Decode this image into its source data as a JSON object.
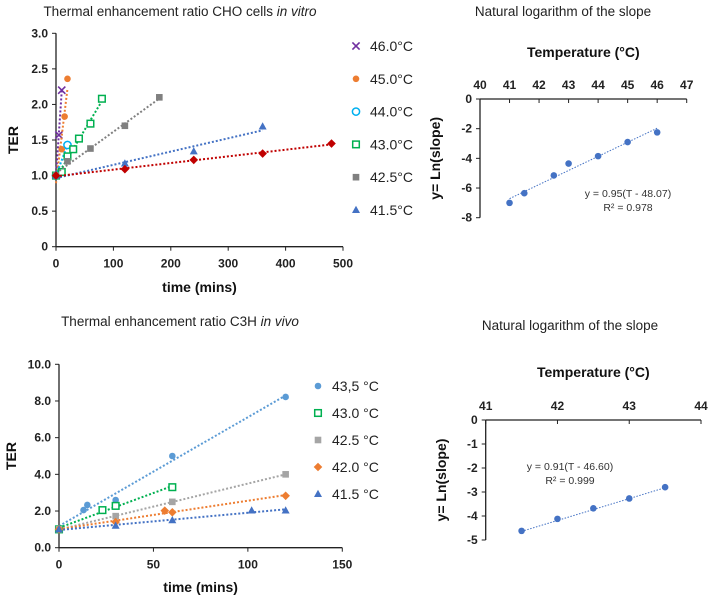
{
  "chart_data": [
    {
      "id": "c1",
      "type": "scatter",
      "title": "Thermal enhancement ratio CHO cells",
      "title_italic": "in vitro",
      "xlabel": "time (mins)",
      "ylabel": "TER",
      "xlim": [
        0,
        500
      ],
      "ylim": [
        0,
        3.0
      ],
      "xticks": [
        "0",
        "100",
        "200",
        "300",
        "400",
        "500"
      ],
      "yticks": [
        "0",
        "0.5",
        "1.0",
        "1.5",
        "2.0",
        "2.5",
        "3.0"
      ],
      "legend_position": "right",
      "series": [
        {
          "name": "46.0°C",
          "color": "#7030a0",
          "marker": "x",
          "x": [
            0,
            5,
            10
          ],
          "y": [
            1.0,
            1.57,
            2.2
          ]
        },
        {
          "name": "45.0°C",
          "color": "#ed7d31",
          "marker": "circle",
          "x": [
            0,
            10,
            15,
            20
          ],
          "y": [
            1.0,
            1.37,
            1.83,
            2.36
          ]
        },
        {
          "name": "44.0°C",
          "color": "#00b0f0",
          "marker": "open-circle",
          "x": [
            0,
            20
          ],
          "y": [
            1.0,
            1.43
          ]
        },
        {
          "name": "43.0°C",
          "color": "#00b050",
          "marker": "open-square",
          "x": [
            0,
            10,
            20,
            30,
            40,
            60,
            80
          ],
          "y": [
            1.0,
            1.05,
            1.27,
            1.37,
            1.52,
            1.73,
            2.08
          ]
        },
        {
          "name": "42.5°C",
          "color": "#808080",
          "marker": "square",
          "x": [
            0,
            20,
            60,
            120,
            180
          ],
          "y": [
            1.0,
            1.2,
            1.38,
            1.7,
            2.1
          ]
        },
        {
          "name": "41.5°C",
          "color": "#4472c4",
          "marker": "triangle",
          "x": [
            0,
            120,
            240,
            360
          ],
          "y": [
            1.0,
            1.17,
            1.34,
            1.69
          ]
        },
        {
          "name": "",
          "color": "#c00000",
          "marker": "diamond",
          "x": [
            0,
            120,
            240,
            360,
            480
          ],
          "y": [
            1.0,
            1.09,
            1.22,
            1.31,
            1.45
          ]
        }
      ]
    },
    {
      "id": "c2",
      "type": "scatter",
      "title": "Natural logarithm of the slope",
      "xlabel": "Temperature (°C)",
      "ylabel": "y= Ln(slope)",
      "xlim": [
        40,
        47
      ],
      "ylim": [
        -8,
        0
      ],
      "xticks": [
        "40",
        "41",
        "42",
        "43",
        "44",
        "45",
        "46",
        "47"
      ],
      "yticks": [
        "-8",
        "-6",
        "-4",
        "-2",
        "0"
      ],
      "equation": "y = 0.95(T - 48.07)",
      "r2": "R² = 0.978",
      "fit": {
        "slope": 0.95,
        "x0": 48.07
      },
      "series": [
        {
          "name": "Ln(slope)",
          "color": "#4472c4",
          "marker": "circle",
          "x": [
            41,
            41.5,
            42.5,
            43,
            44,
            45,
            46
          ],
          "y": [
            -7.0,
            -6.35,
            -5.15,
            -4.35,
            -3.85,
            -2.9,
            -2.25
          ]
        }
      ]
    },
    {
      "id": "c3",
      "type": "scatter",
      "title": "Thermal enhancement ratio C3H",
      "title_italic": "in vivo",
      "xlabel": "time (mins)",
      "ylabel": "TER",
      "xlim": [
        0,
        150
      ],
      "ylim": [
        0,
        10
      ],
      "xticks": [
        "0",
        "50",
        "100",
        "150"
      ],
      "yticks": [
        "0.0",
        "2.0",
        "4.0",
        "6.0",
        "8.0",
        "10.0"
      ],
      "legend_position": "right",
      "series": [
        {
          "name": "43,5 °C",
          "color": "#5b9bd5",
          "marker": "circle",
          "x": [
            0,
            13,
            15,
            30,
            60,
            120
          ],
          "y": [
            1.0,
            2.05,
            2.33,
            2.6,
            5.0,
            8.22
          ]
        },
        {
          "name": "43.0 °C",
          "color": "#00b050",
          "marker": "open-square",
          "x": [
            0,
            23,
            30,
            60
          ],
          "y": [
            1.0,
            2.05,
            2.28,
            3.3
          ]
        },
        {
          "name": "42.5 °C",
          "color": "#a5a5a5",
          "marker": "square",
          "x": [
            0,
            30,
            60,
            120
          ],
          "y": [
            1.0,
            1.72,
            2.5,
            4.0
          ]
        },
        {
          "name": "42.0 °C",
          "color": "#ed7d31",
          "marker": "diamond",
          "x": [
            0,
            30,
            56,
            60,
            120
          ],
          "y": [
            1.0,
            1.4,
            2.02,
            1.93,
            2.83
          ]
        },
        {
          "name": "41.5 °C",
          "color": "#4472c4",
          "marker": "triangle",
          "x": [
            0,
            30,
            60,
            102,
            120
          ],
          "y": [
            1.0,
            1.2,
            1.5,
            2.03,
            2.03
          ]
        }
      ]
    },
    {
      "id": "c4",
      "type": "scatter",
      "title": "Natural logarithm of the slope",
      "xlabel": "Temperature (°C)",
      "ylabel": "y= Ln(slope)",
      "xlim": [
        41,
        44
      ],
      "ylim": [
        -5,
        0
      ],
      "xticks": [
        "41",
        "42",
        "43",
        "44"
      ],
      "yticks": [
        "-5",
        "-4",
        "-3",
        "-2",
        "-1",
        "0"
      ],
      "equation": "y = 0.91(T - 46.60)",
      "r2": "R² = 0.999",
      "fit": {
        "slope": 0.91,
        "x0": 46.6
      },
      "series": [
        {
          "name": "Ln(slope)",
          "color": "#4472c4",
          "marker": "circle",
          "x": [
            41.5,
            42,
            42.5,
            43,
            43.5
          ],
          "y": [
            -4.62,
            -4.12,
            -3.68,
            -3.27,
            -2.8
          ]
        }
      ]
    }
  ]
}
